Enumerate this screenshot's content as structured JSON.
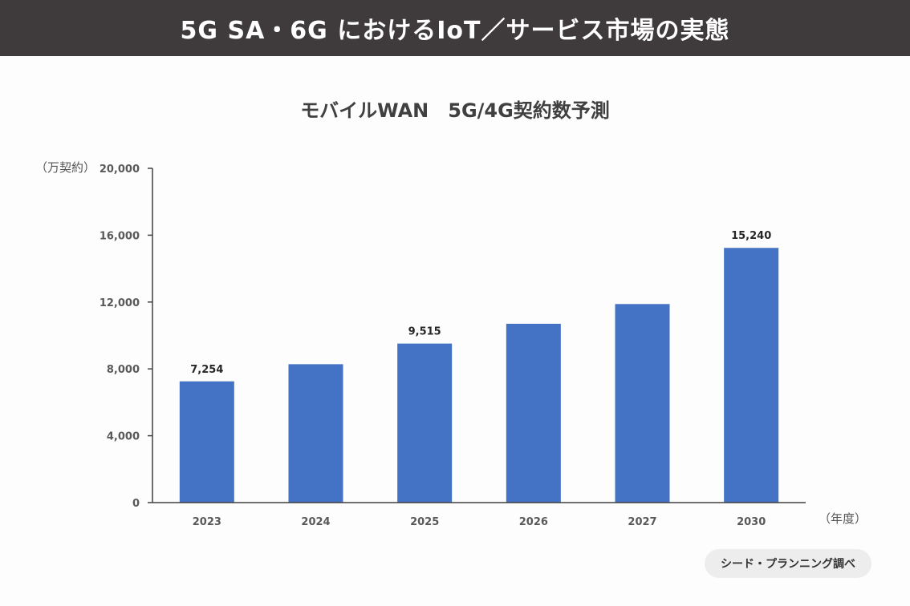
{
  "banner": {
    "title": "5G SA・6G におけるIoT／サービス市場の実態"
  },
  "chart_data": {
    "type": "bar",
    "title": "モバイルWAN　5G/4G契約数予測",
    "y_unit_label": "（万契約）",
    "x_unit_label": "（年度）",
    "categories": [
      "2023",
      "2024",
      "2025",
      "2026",
      "2027",
      "2030"
    ],
    "values": [
      7254,
      8280,
      9515,
      10700,
      11880,
      15240
    ],
    "data_labels": [
      "7,254",
      "",
      "9,515",
      "",
      "",
      "15,240"
    ],
    "y_ticks": [
      "0",
      "4,000",
      "8,000",
      "12,000",
      "16,000",
      "20,000"
    ],
    "ylim": [
      0,
      20000
    ],
    "grid": false,
    "bar_color": "#4472c4"
  },
  "source": {
    "label": "シード・プランニング調べ"
  }
}
